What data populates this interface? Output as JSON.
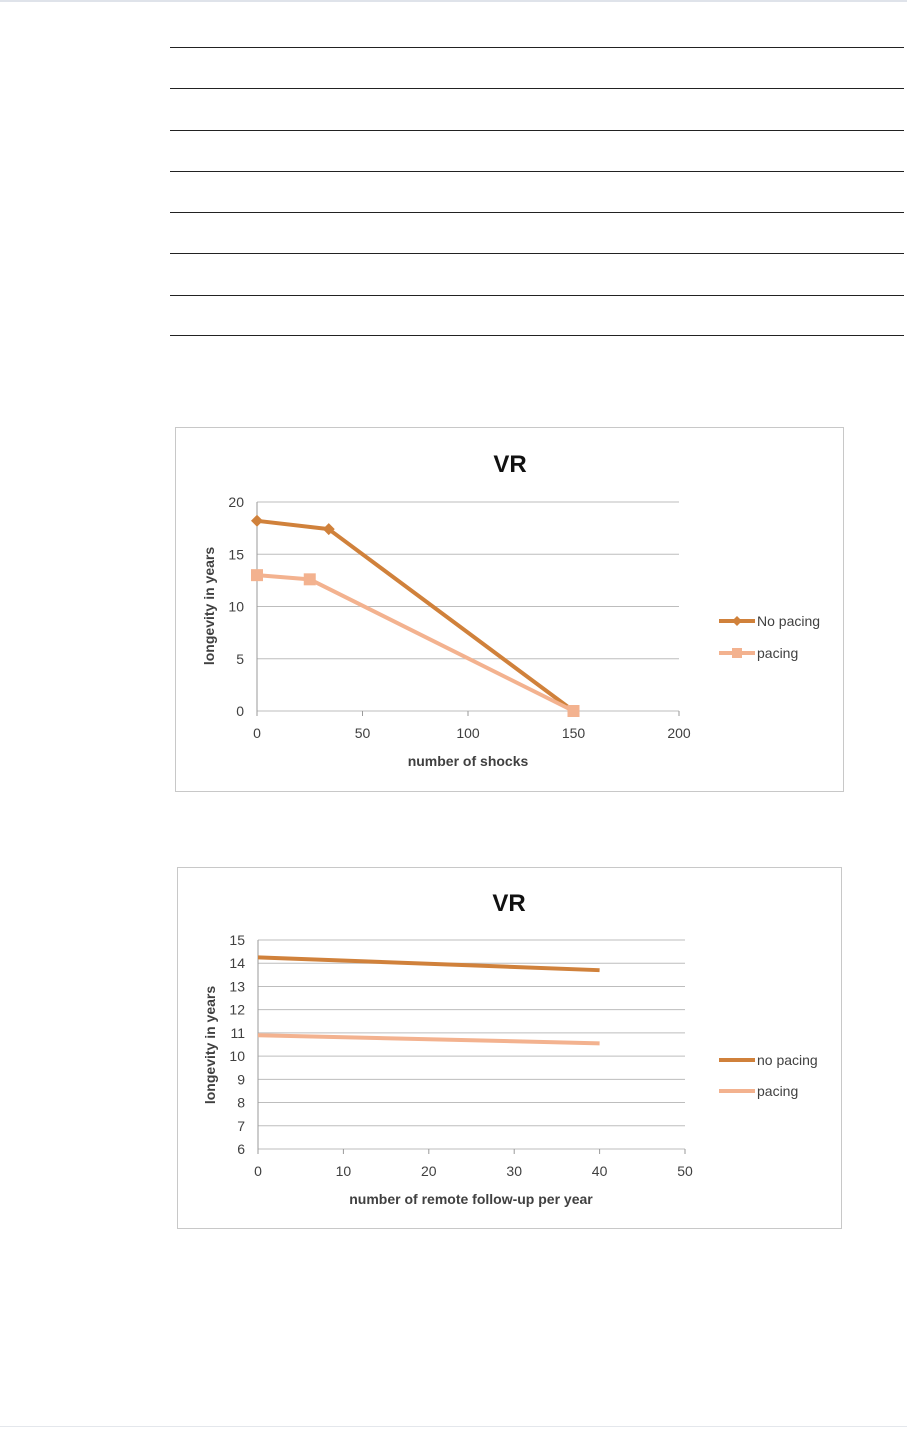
{
  "table": {
    "row_count": 7
  },
  "chart_data": [
    {
      "type": "line",
      "title": "VR",
      "xlabel": "number of shocks",
      "ylabel": "longevity in years",
      "xlim": [
        0,
        200
      ],
      "ylim": [
        0,
        20
      ],
      "x_ticks": [
        "0",
        "50",
        "100",
        "150",
        "200"
      ],
      "y_ticks": [
        "0",
        "5",
        "10",
        "15",
        "20"
      ],
      "grid": "horizontal",
      "legend": "right",
      "series": [
        {
          "name": "No pacing",
          "color": "#d0813b",
          "marker": "diamond",
          "x": [
            0,
            34,
            150
          ],
          "y": [
            18.2,
            17.4,
            0
          ]
        },
        {
          "name": "pacing",
          "color": "#f3b28f",
          "marker": "square",
          "x": [
            0,
            25,
            150
          ],
          "y": [
            13.0,
            12.6,
            0
          ]
        }
      ]
    },
    {
      "type": "line",
      "title": "VR",
      "xlabel": "number of remote follow-up per year",
      "ylabel": "longevity in years",
      "xlim": [
        0,
        50
      ],
      "ylim": [
        6,
        15
      ],
      "x_ticks": [
        "0",
        "10",
        "20",
        "30",
        "40",
        "50"
      ],
      "y_ticks": [
        "6",
        "7",
        "8",
        "9",
        "10",
        "11",
        "12",
        "13",
        "14",
        "15"
      ],
      "grid": "horizontal",
      "legend": "right",
      "series": [
        {
          "name": "no pacing",
          "color": "#d0813b",
          "marker": "none",
          "x": [
            0,
            40
          ],
          "y": [
            14.25,
            13.7
          ]
        },
        {
          "name": "pacing",
          "color": "#f3b28f",
          "marker": "none",
          "x": [
            0,
            40
          ],
          "y": [
            10.9,
            10.55
          ]
        }
      ]
    }
  ]
}
